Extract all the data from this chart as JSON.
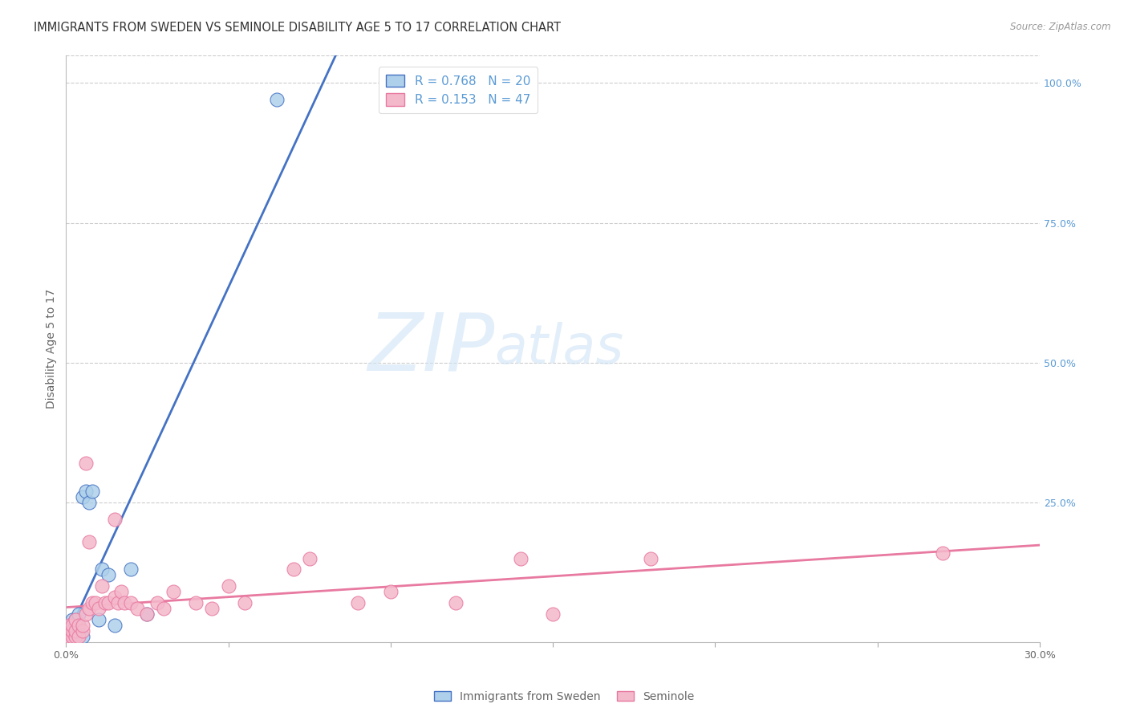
{
  "title": "IMMIGRANTS FROM SWEDEN VS SEMINOLE DISABILITY AGE 5 TO 17 CORRELATION CHART",
  "source": "Source: ZipAtlas.com",
  "ylabel": "Disability Age 5 to 17",
  "x_min": 0.0,
  "x_max": 0.3,
  "y_min": 0.0,
  "y_max": 1.05,
  "x_ticks": [
    0.0,
    0.05,
    0.1,
    0.15,
    0.2,
    0.25,
    0.3
  ],
  "x_tick_labels": [
    "0.0%",
    "",
    "",
    "",
    "",
    "",
    "30.0%"
  ],
  "y_ticks_right": [
    0.0,
    0.25,
    0.5,
    0.75,
    1.0
  ],
  "y_tick_labels_right": [
    "",
    "25.0%",
    "50.0%",
    "75.0%",
    "100.0%"
  ],
  "sweden_R": 0.768,
  "sweden_N": 20,
  "seminole_R": 0.153,
  "seminole_N": 47,
  "sweden_color": "#aed0ea",
  "seminole_color": "#f4b8cb",
  "sweden_line_color": "#4472c4",
  "seminole_line_color": "#e879a0",
  "watermark_zip": "ZIP",
  "watermark_atlas": "atlas",
  "sweden_x": [
    0.001,
    0.001,
    0.002,
    0.002,
    0.003,
    0.003,
    0.004,
    0.004,
    0.005,
    0.005,
    0.006,
    0.007,
    0.008,
    0.01,
    0.011,
    0.013,
    0.015,
    0.02,
    0.025,
    0.065
  ],
  "sweden_y": [
    0.02,
    0.03,
    0.01,
    0.04,
    0.02,
    0.04,
    0.03,
    0.05,
    0.01,
    0.26,
    0.27,
    0.25,
    0.27,
    0.04,
    0.13,
    0.12,
    0.03,
    0.13,
    0.05,
    0.97
  ],
  "seminole_x": [
    0.001,
    0.001,
    0.001,
    0.002,
    0.002,
    0.002,
    0.003,
    0.003,
    0.003,
    0.004,
    0.004,
    0.005,
    0.005,
    0.006,
    0.006,
    0.007,
    0.007,
    0.008,
    0.009,
    0.01,
    0.011,
    0.012,
    0.013,
    0.015,
    0.015,
    0.016,
    0.017,
    0.018,
    0.02,
    0.022,
    0.025,
    0.028,
    0.03,
    0.033,
    0.04,
    0.045,
    0.05,
    0.055,
    0.07,
    0.075,
    0.09,
    0.1,
    0.12,
    0.14,
    0.15,
    0.18,
    0.27
  ],
  "seminole_y": [
    0.01,
    0.02,
    0.03,
    0.01,
    0.02,
    0.03,
    0.01,
    0.02,
    0.04,
    0.01,
    0.03,
    0.02,
    0.03,
    0.32,
    0.05,
    0.06,
    0.18,
    0.07,
    0.07,
    0.06,
    0.1,
    0.07,
    0.07,
    0.22,
    0.08,
    0.07,
    0.09,
    0.07,
    0.07,
    0.06,
    0.05,
    0.07,
    0.06,
    0.09,
    0.07,
    0.06,
    0.1,
    0.07,
    0.13,
    0.15,
    0.07,
    0.09,
    0.07,
    0.15,
    0.05,
    0.15,
    0.16
  ],
  "background_color": "#ffffff",
  "grid_color": "#cccccc",
  "title_fontsize": 11,
  "axis_label_fontsize": 10
}
